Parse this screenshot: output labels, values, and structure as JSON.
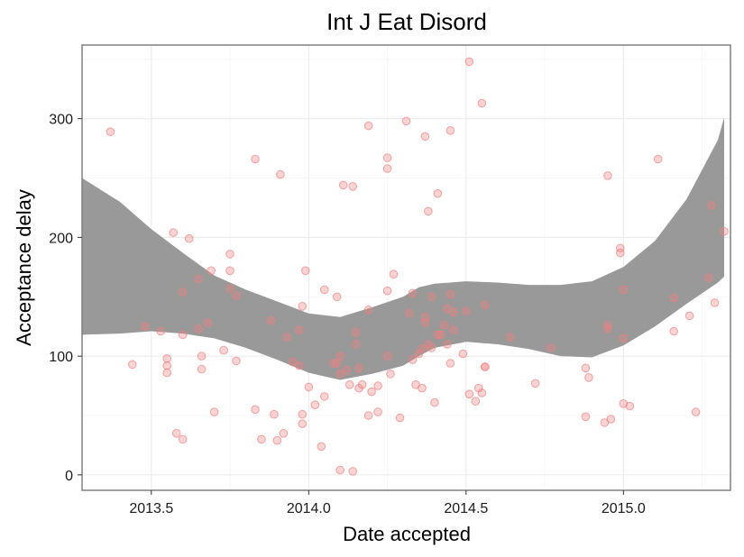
{
  "chart_data": {
    "type": "scatter",
    "title": "Int J Eat Disord",
    "xlabel": "Date accepted",
    "ylabel": "Acceptance delay",
    "xlim": [
      2013.28,
      2015.34
    ],
    "ylim": [
      -13,
      362
    ],
    "x_ticks": [
      2013.5,
      2014.0,
      2014.5,
      2015.0
    ],
    "x_tick_labels": [
      "2013.5",
      "2014.0",
      "2014.5",
      "2015.0"
    ],
    "y_ticks": [
      0,
      100,
      200,
      300
    ],
    "y_tick_labels": [
      "0",
      "100",
      "200",
      "300"
    ],
    "grid": true,
    "point_color": "#f08080",
    "band_color": "#999999",
    "points": [
      [
        2013.37,
        289
      ],
      [
        2013.44,
        93
      ],
      [
        2013.48,
        125
      ],
      [
        2013.53,
        121
      ],
      [
        2013.55,
        98
      ],
      [
        2013.55,
        92
      ],
      [
        2013.55,
        86
      ],
      [
        2013.57,
        204
      ],
      [
        2013.58,
        35
      ],
      [
        2013.6,
        154
      ],
      [
        2013.6,
        118
      ],
      [
        2013.6,
        30
      ],
      [
        2013.62,
        199
      ],
      [
        2013.65,
        165
      ],
      [
        2013.65,
        123
      ],
      [
        2013.66,
        100
      ],
      [
        2013.66,
        89
      ],
      [
        2013.68,
        128
      ],
      [
        2013.69,
        172
      ],
      [
        2013.7,
        53
      ],
      [
        2013.73,
        105
      ],
      [
        2013.75,
        186
      ],
      [
        2013.75,
        172
      ],
      [
        2013.75,
        157
      ],
      [
        2013.77,
        151
      ],
      [
        2013.77,
        96
      ],
      [
        2013.83,
        266
      ],
      [
        2013.83,
        55
      ],
      [
        2013.85,
        30
      ],
      [
        2013.88,
        130
      ],
      [
        2013.89,
        51
      ],
      [
        2013.9,
        29
      ],
      [
        2013.91,
        253
      ],
      [
        2013.92,
        35
      ],
      [
        2013.93,
        116
      ],
      [
        2013.95,
        95
      ],
      [
        2013.97,
        122
      ],
      [
        2013.97,
        92
      ],
      [
        2013.98,
        142
      ],
      [
        2013.98,
        51
      ],
      [
        2013.98,
        43
      ],
      [
        2013.99,
        172
      ],
      [
        2014.0,
        74
      ],
      [
        2014.02,
        59
      ],
      [
        2014.04,
        24
      ],
      [
        2014.05,
        156
      ],
      [
        2014.05,
        66
      ],
      [
        2014.08,
        94
      ],
      [
        2014.09,
        94
      ],
      [
        2014.09,
        150
      ],
      [
        2014.1,
        100
      ],
      [
        2014.1,
        85
      ],
      [
        2014.1,
        4
      ],
      [
        2014.11,
        244
      ],
      [
        2014.12,
        88
      ],
      [
        2014.13,
        76
      ],
      [
        2014.14,
        243
      ],
      [
        2014.14,
        3
      ],
      [
        2014.15,
        120
      ],
      [
        2014.15,
        110
      ],
      [
        2014.16,
        90
      ],
      [
        2014.16,
        73
      ],
      [
        2014.17,
        76
      ],
      [
        2014.19,
        294
      ],
      [
        2014.19,
        139
      ],
      [
        2014.19,
        50
      ],
      [
        2014.2,
        70
      ],
      [
        2014.22,
        75
      ],
      [
        2014.22,
        53
      ],
      [
        2014.25,
        267
      ],
      [
        2014.25,
        258
      ],
      [
        2014.25,
        155
      ],
      [
        2014.25,
        100
      ],
      [
        2014.26,
        85
      ],
      [
        2014.27,
        169
      ],
      [
        2014.29,
        48
      ],
      [
        2014.31,
        298
      ],
      [
        2014.32,
        136
      ],
      [
        2014.33,
        153
      ],
      [
        2014.33,
        97
      ],
      [
        2014.34,
        76
      ],
      [
        2014.35,
        102
      ],
      [
        2014.36,
        73
      ],
      [
        2014.36,
        106
      ],
      [
        2014.37,
        285
      ],
      [
        2014.37,
        128
      ],
      [
        2014.37,
        133
      ],
      [
        2014.38,
        222
      ],
      [
        2014.38,
        110
      ],
      [
        2014.39,
        150
      ],
      [
        2014.39,
        107
      ],
      [
        2014.4,
        61
      ],
      [
        2014.41,
        237
      ],
      [
        2014.41,
        118
      ],
      [
        2014.42,
        118
      ],
      [
        2014.43,
        126
      ],
      [
        2014.44,
        140
      ],
      [
        2014.44,
        110
      ],
      [
        2014.45,
        290
      ],
      [
        2014.45,
        152
      ],
      [
        2014.45,
        94
      ],
      [
        2014.46,
        137
      ],
      [
        2014.46,
        122
      ],
      [
        2014.49,
        102
      ],
      [
        2014.5,
        138
      ],
      [
        2014.51,
        348
      ],
      [
        2014.51,
        68
      ],
      [
        2014.53,
        62
      ],
      [
        2014.54,
        73
      ],
      [
        2014.55,
        313
      ],
      [
        2014.55,
        69
      ],
      [
        2014.56,
        91
      ],
      [
        2014.56,
        143
      ],
      [
        2014.56,
        91
      ],
      [
        2014.64,
        116
      ],
      [
        2014.72,
        77
      ],
      [
        2014.77,
        107
      ],
      [
        2014.88,
        49
      ],
      [
        2014.88,
        90
      ],
      [
        2014.89,
        82
      ],
      [
        2014.94,
        44
      ],
      [
        2014.95,
        252
      ],
      [
        2014.95,
        126
      ],
      [
        2014.95,
        123
      ],
      [
        2014.96,
        47
      ],
      [
        2014.99,
        191
      ],
      [
        2014.99,
        187
      ],
      [
        2015.0,
        156
      ],
      [
        2015.0,
        115
      ],
      [
        2015.0,
        60
      ],
      [
        2015.02,
        58
      ],
      [
        2015.11,
        266
      ],
      [
        2015.16,
        149
      ],
      [
        2015.16,
        121
      ],
      [
        2015.21,
        134
      ],
      [
        2015.23,
        53
      ],
      [
        2015.27,
        166
      ],
      [
        2015.28,
        227
      ],
      [
        2015.29,
        145
      ],
      [
        2015.32,
        205
      ]
    ],
    "confidence_band": {
      "x": [
        2013.28,
        2013.4,
        2013.5,
        2013.6,
        2013.7,
        2013.8,
        2013.9,
        2014.0,
        2014.1,
        2014.2,
        2014.3,
        2014.35,
        2014.4,
        2014.5,
        2014.6,
        2014.7,
        2014.8,
        2014.9,
        2015.0,
        2015.1,
        2015.2,
        2015.3,
        2015.32
      ],
      "upper": [
        250,
        230,
        207,
        187,
        168,
        156,
        146,
        136,
        133,
        141,
        150,
        158,
        161,
        163,
        162,
        160,
        160,
        163,
        175,
        197,
        232,
        282,
        301
      ],
      "lower": [
        118,
        119,
        121,
        119,
        115,
        107,
        97,
        86,
        80,
        85,
        92,
        100,
        107,
        112,
        110,
        106,
        100,
        99,
        109,
        125,
        144,
        162,
        167
      ]
    }
  }
}
